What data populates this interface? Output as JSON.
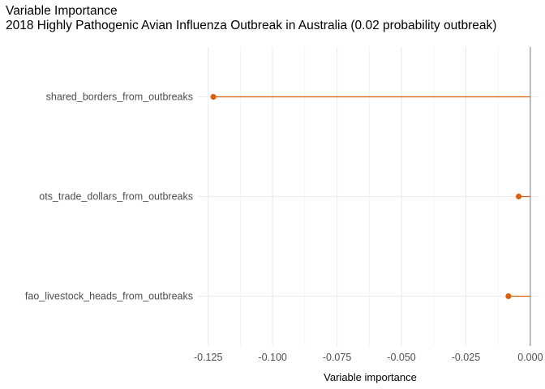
{
  "chart_data": {
    "type": "lollipop",
    "title": "Variable Importance",
    "subtitle": "2018 Highly Pathogenic Avian Influenza Outbreak in Australia (0.02 probability outbreak)",
    "xlabel": "Variable importance",
    "ylabel": "",
    "xlim": [
      -0.129,
      0.0035
    ],
    "x_ticks": [
      -0.125,
      -0.1,
      -0.075,
      -0.05,
      -0.025,
      0.0
    ],
    "x_tick_labels": [
      "-0.125",
      "-0.100",
      "-0.075",
      "-0.050",
      "-0.025",
      "0.000"
    ],
    "categories": [
      "shared_borders_from_outbreaks",
      "ots_trade_dollars_from_outbreaks",
      "fao_livestock_heads_from_outbreaks"
    ],
    "values": [
      -0.123,
      -0.0045,
      -0.0085
    ],
    "grid": true,
    "legend": "none",
    "colors": {
      "point": "#d95f0e",
      "baseline": "#7f7f7f",
      "grid": "#ebebeb"
    }
  }
}
